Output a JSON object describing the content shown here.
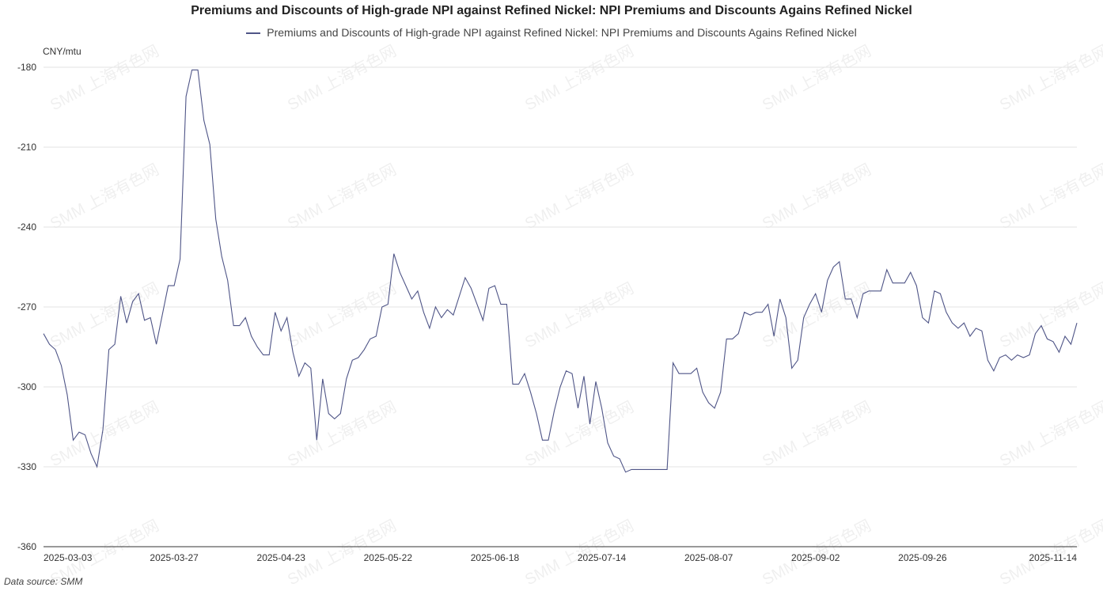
{
  "chart_data": {
    "type": "line",
    "title": "Premiums and Discounts of High-grade NPI against Refined Nickel: NPI Premiums and Discounts Agains Refined Nickel",
    "unit": "CNY/mtu",
    "source": "Data source:  SMM",
    "watermark": "SMM 上海有色网",
    "ylim": [
      -360,
      -180
    ],
    "yticks": [
      "-180",
      "-210",
      "-240",
      "-270",
      "-300",
      "-330",
      "-360"
    ],
    "ytick_values": [
      -180,
      -210,
      -240,
      -270,
      -300,
      -330,
      -360
    ],
    "xticks": [
      {
        "label": "2025-03-03",
        "index": 5
      },
      {
        "label": "2025-03-27",
        "index": 22
      },
      {
        "label": "2025-04-23",
        "index": 40
      },
      {
        "label": "2025-05-22",
        "index": 58
      },
      {
        "label": "2025-06-18",
        "index": 76
      },
      {
        "label": "2025-07-14",
        "index": 94
      },
      {
        "label": "2025-08-07",
        "index": 112
      },
      {
        "label": "2025-09-02",
        "index": 130
      },
      {
        "label": "2025-09-26",
        "index": 148
      },
      {
        "label": "2025-11-14",
        "index": 173
      }
    ],
    "grid": true,
    "legend_position": "top-center",
    "series": [
      {
        "name": "Premiums and Discounts of High-grade NPI against Refined Nickel: NPI Premiums and Discounts Agains Refined Nickel",
        "color": "#4f5587",
        "values": [
          -280,
          -284,
          -286,
          -292,
          -303,
          -320,
          -317,
          -318,
          -325,
          -330,
          -316,
          -286,
          -284,
          -266,
          -276,
          -268,
          -265,
          -275,
          -274,
          -284,
          -273,
          -262,
          -262,
          -252,
          -191,
          -181,
          -181,
          -200,
          -209,
          -237,
          -251,
          -260,
          -277,
          -277,
          -274,
          -281,
          -285,
          -288,
          -288,
          -272,
          -279,
          -274,
          -287,
          -296,
          -291,
          -293,
          -320,
          -297,
          -310,
          -312,
          -310,
          -297,
          -290,
          -289,
          -286,
          -282,
          -281,
          -270,
          -269,
          -250,
          -257,
          -262,
          -267,
          -264,
          -272,
          -278,
          -270,
          -274,
          -271,
          -273,
          -266,
          -259,
          -263,
          -269,
          -275,
          -263,
          -262,
          -269,
          -269,
          -299,
          -299,
          -295,
          -302,
          -310,
          -320,
          -320,
          -309,
          -300,
          -294,
          -295,
          -308,
          -296,
          -314,
          -298,
          -308,
          -321,
          -326,
          -327,
          -332,
          -331,
          -331,
          -331,
          -331,
          -331,
          -331,
          -331,
          -291,
          -295,
          -295,
          -295,
          -293,
          -302,
          -306,
          -308,
          -302,
          -282,
          -282,
          -280,
          -272,
          -273,
          -272,
          -272,
          -269,
          -281,
          -267,
          -274,
          -293,
          -290,
          -274,
          -269,
          -265,
          -272,
          -260,
          -255,
          -253,
          -267,
          -267,
          -274,
          -265,
          -264,
          -264,
          -264,
          -256,
          -261,
          -261,
          -261,
          -257,
          -262,
          -274,
          -276,
          -264,
          -265,
          -272,
          -276,
          -278,
          -276,
          -281,
          -278,
          -279,
          -290,
          -294,
          -289,
          -288,
          -290,
          -288,
          -289,
          -288,
          -280,
          -277,
          -282,
          -283,
          -287,
          -281,
          -284,
          -276
        ]
      }
    ]
  }
}
